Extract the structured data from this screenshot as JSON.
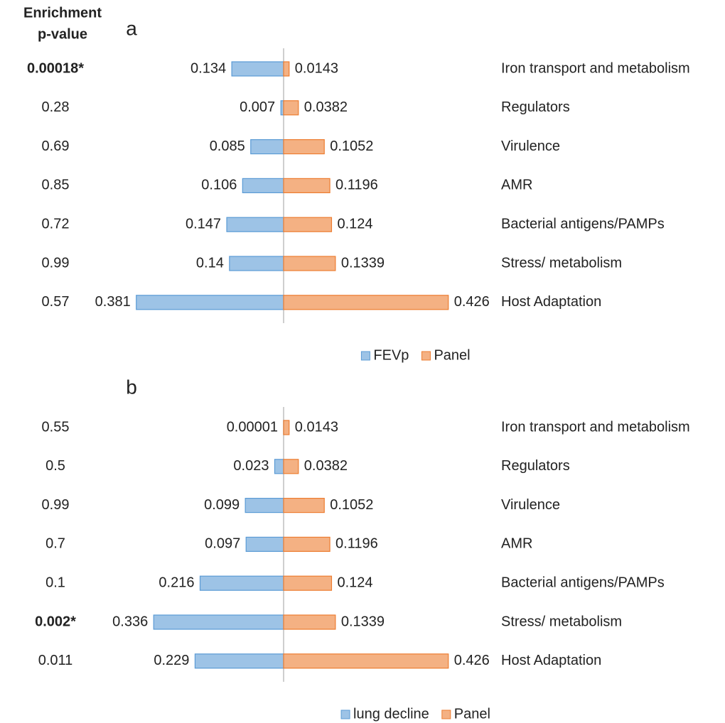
{
  "header": {
    "lines": [
      "Enrichment",
      "p-value"
    ]
  },
  "chart_data": [
    {
      "type": "bar",
      "title": "a",
      "categories": [
        "Iron transport and metabolism",
        "Regulators",
        "Virulence",
        "AMR",
        "Bacterial antigens/PAMPs",
        "Stress/ metabolism",
        "Host Adaptation"
      ],
      "pvalues": [
        "0.00018*",
        "0.28",
        "0.69",
        "0.85",
        "0.72",
        "0.99",
        "0.57"
      ],
      "series": [
        {
          "name": "FEVp",
          "color": "#5b9bd5",
          "fill": "#9dc3e6",
          "values": [
            0.134,
            0.007,
            0.085,
            0.106,
            0.147,
            0.14,
            0.381
          ]
        },
        {
          "name": "Panel",
          "color": "#ed7d31",
          "fill": "#f4b183",
          "values": [
            0.0143,
            0.0382,
            0.1052,
            0.1196,
            0.124,
            0.1339,
            0.426
          ]
        }
      ]
    },
    {
      "type": "bar",
      "title": "b",
      "categories": [
        "Iron transport and metabolism",
        "Regulators",
        "Virulence",
        "AMR",
        "Bacterial antigens/PAMPs",
        "Stress/ metabolism",
        "Host Adaptation"
      ],
      "pvalues": [
        "0.55",
        "0.5",
        "0.99",
        "0.7",
        "0.1",
        "0.002*",
        "0.011"
      ],
      "series": [
        {
          "name": "lung decline",
          "color": "#5b9bd5",
          "fill": "#9dc3e6",
          "values": [
            1e-05,
            0.023,
            0.099,
            0.097,
            0.216,
            0.336,
            0.229
          ]
        },
        {
          "name": "Panel",
          "color": "#ed7d31",
          "fill": "#f4b183",
          "values": [
            0.0143,
            0.0382,
            0.1052,
            0.1196,
            0.124,
            0.1339,
            0.426
          ]
        }
      ]
    }
  ]
}
